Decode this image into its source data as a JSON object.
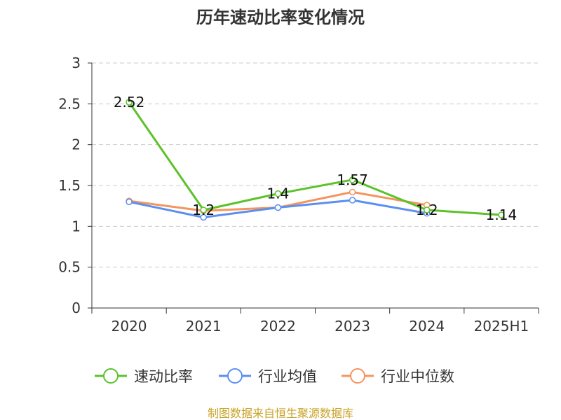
{
  "chart_data": {
    "type": "line",
    "title": "历年速动比率变化情况",
    "categories": [
      "2020",
      "2021",
      "2022",
      "2023",
      "2024",
      "2025H1"
    ],
    "y_ticks": [
      "0",
      "0.5",
      "1",
      "1.5",
      "2",
      "2.5",
      "3"
    ],
    "ylim": [
      0,
      3
    ],
    "grid": true,
    "legend_position": "bottom",
    "series": [
      {
        "name": "速动比率",
        "color": "#5bc22a",
        "values": [
          2.52,
          1.2,
          1.4,
          1.57,
          1.2,
          1.14
        ],
        "data_labels": [
          "2.52",
          "1.2",
          "1.4",
          "1.57",
          "1.2",
          "1.14"
        ]
      },
      {
        "name": "行业均值",
        "color": "#5b8ff0",
        "values": [
          1.3,
          1.11,
          1.23,
          1.32,
          1.16,
          null
        ]
      },
      {
        "name": "行业中位数",
        "color": "#f5945c",
        "values": [
          1.31,
          1.19,
          1.23,
          1.42,
          1.26,
          null
        ]
      }
    ]
  },
  "footer": {
    "source": "制图数据来自恒生聚源数据库"
  }
}
